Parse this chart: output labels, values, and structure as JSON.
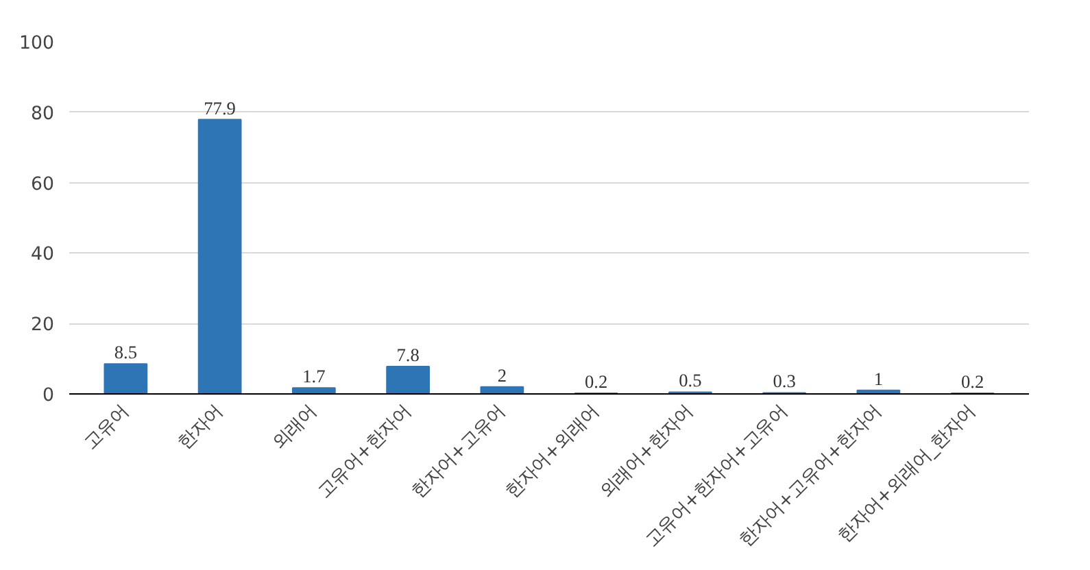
{
  "chart_data": {
    "type": "bar",
    "categories": [
      "고유어",
      "한자어",
      "외래어",
      "고유어+한자어",
      "한자어+고유어",
      "한자어+외래어",
      "외래어+한자어",
      "고유어+한자어+고유어",
      "한자어+고유어+한자어",
      "한자어+외래어_한자어"
    ],
    "values": [
      8.5,
      77.9,
      1.7,
      7.8,
      2,
      0.2,
      0.5,
      0.3,
      1,
      0.2
    ],
    "color": "#2e75b6",
    "ylim": [
      0,
      100
    ],
    "yticks": [
      0,
      20,
      40,
      60,
      80,
      100
    ],
    "grid": "y",
    "data_labels": true
  }
}
